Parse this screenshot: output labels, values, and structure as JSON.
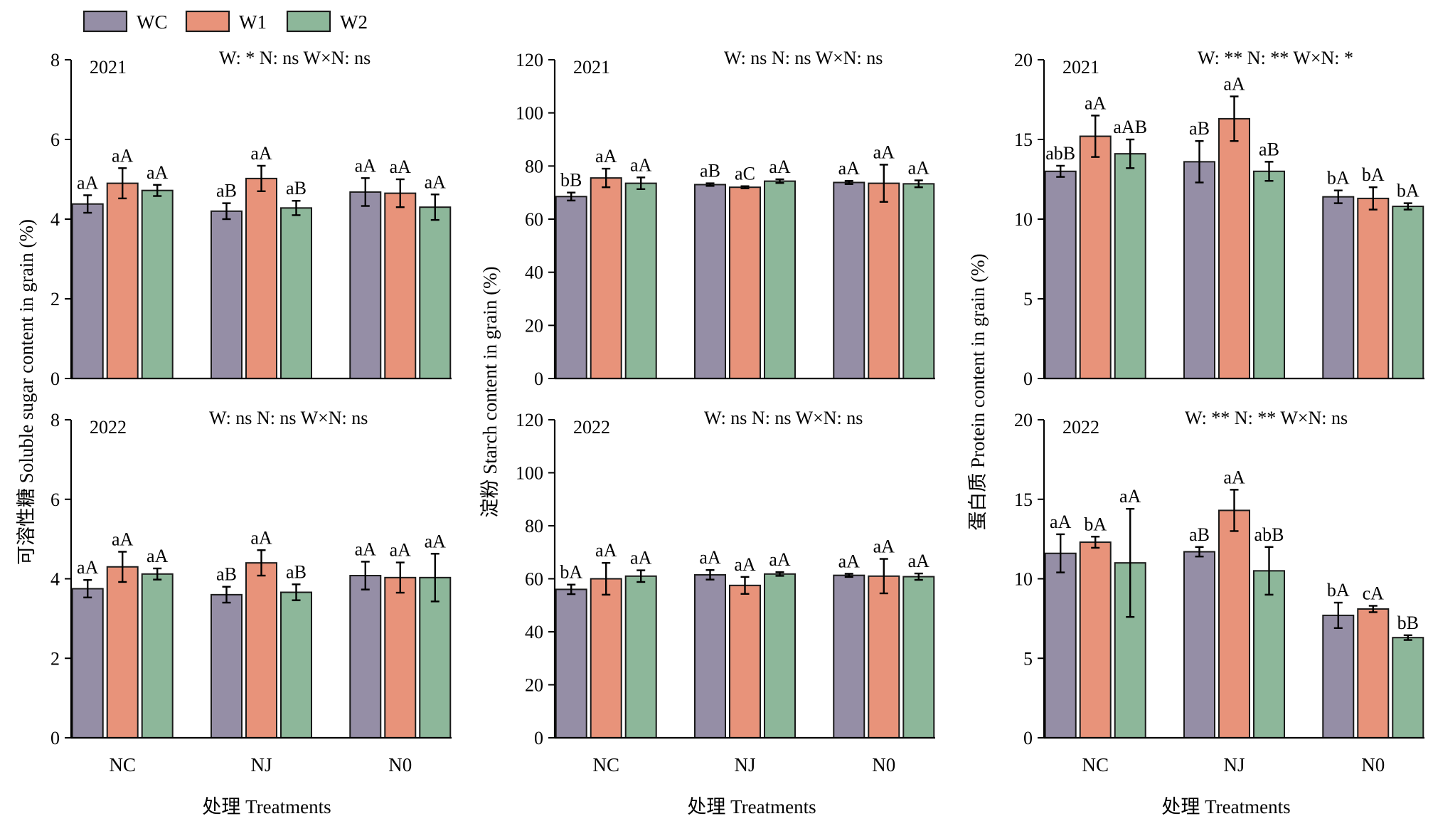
{
  "legend": {
    "entries": [
      {
        "name": "WC",
        "color": "#958ea6"
      },
      {
        "name": "W1",
        "color": "#e8937a"
      },
      {
        "name": "W2",
        "color": "#8db79a"
      }
    ]
  },
  "xlabel": "处理 Treatments",
  "chart_data": [
    {
      "type": "bar",
      "year": "2021",
      "stats": "W: *   N: ns   W×N: ns",
      "ylabel": "可溶性糖 Soluble sugar content in grain (%)",
      "ylim": [
        0,
        8
      ],
      "yticks": [
        0,
        2,
        4,
        6,
        8
      ],
      "categories": [
        "NC",
        "NJ",
        "N0"
      ],
      "series": [
        {
          "name": "WC",
          "values": [
            4.38,
            4.2,
            4.68
          ],
          "errors": [
            0.22,
            0.2,
            0.35
          ],
          "labels": [
            "aA",
            "aB",
            "aA"
          ]
        },
        {
          "name": "W1",
          "values": [
            4.9,
            5.02,
            4.65
          ],
          "errors": [
            0.38,
            0.32,
            0.35
          ],
          "labels": [
            "aA",
            "aA",
            "aA"
          ]
        },
        {
          "name": "W2",
          "values": [
            4.72,
            4.28,
            4.3
          ],
          "errors": [
            0.14,
            0.18,
            0.32
          ],
          "labels": [
            "aA",
            "aB",
            "aA"
          ]
        }
      ]
    },
    {
      "type": "bar",
      "year": "2021",
      "stats": "W: ns   N: ns   W×N: ns",
      "ylabel": "",
      "ylim": [
        0,
        120
      ],
      "yticks": [
        0,
        20,
        40,
        60,
        80,
        100,
        120
      ],
      "categories": [
        "NC",
        "NJ",
        "N0"
      ],
      "series": [
        {
          "name": "WC",
          "values": [
            68.5,
            73,
            73.8
          ],
          "errors": [
            1.5,
            0.5,
            0.6
          ],
          "labels": [
            "bB",
            "aB",
            "aA"
          ]
        },
        {
          "name": "W1",
          "values": [
            75.5,
            72,
            73.5
          ],
          "errors": [
            3.5,
            0.4,
            7
          ],
          "labels": [
            "aA",
            "aC",
            "aA"
          ]
        },
        {
          "name": "W2",
          "values": [
            73.5,
            74.3,
            73.3
          ],
          "errors": [
            2.2,
            0.7,
            1.3
          ],
          "labels": [
            "aA",
            "aA",
            "aA"
          ]
        }
      ]
    },
    {
      "type": "bar",
      "year": "2021",
      "stats": "W: **   N: **   W×N:  *",
      "ylabel": "",
      "ylim": [
        0,
        20
      ],
      "yticks": [
        0,
        5,
        10,
        15,
        20
      ],
      "categories": [
        "NC",
        "NJ",
        "N0"
      ],
      "series": [
        {
          "name": "WC",
          "values": [
            13,
            13.6,
            11.4
          ],
          "errors": [
            0.35,
            1.3,
            0.4
          ],
          "labels": [
            "abB",
            "aB",
            "bA"
          ]
        },
        {
          "name": "W1",
          "values": [
            15.2,
            16.3,
            11.3
          ],
          "errors": [
            1.3,
            1.4,
            0.7
          ],
          "labels": [
            "aA",
            "aA",
            "bA"
          ]
        },
        {
          "name": "W2",
          "values": [
            14.1,
            13,
            10.8
          ],
          "errors": [
            0.9,
            0.6,
            0.2
          ],
          "labels": [
            "aAB",
            "aB",
            "bA"
          ]
        }
      ]
    },
    {
      "type": "bar",
      "year": "2022",
      "stats": "W: ns   N: ns   W×N:  ns",
      "ylabel": "",
      "ylim": [
        0,
        8
      ],
      "yticks": [
        0,
        2,
        4,
        6,
        8
      ],
      "categories": [
        "NC",
        "NJ",
        "N0"
      ],
      "series": [
        {
          "name": "WC",
          "values": [
            3.75,
            3.6,
            4.08
          ],
          "errors": [
            0.22,
            0.2,
            0.35
          ],
          "labels": [
            "aA",
            "aB",
            "aA"
          ]
        },
        {
          "name": "W1",
          "values": [
            4.3,
            4.4,
            4.03
          ],
          "errors": [
            0.38,
            0.32,
            0.38
          ],
          "labels": [
            "aA",
            "aA",
            "aA"
          ]
        },
        {
          "name": "W2",
          "values": [
            4.12,
            3.66,
            4.03
          ],
          "errors": [
            0.14,
            0.2,
            0.6
          ],
          "labels": [
            "aA",
            "aB",
            "aA"
          ]
        }
      ]
    },
    {
      "type": "bar",
      "year": "2022",
      "stats": "W: ns   N: ns   W×N:  ns",
      "ylabel": "淀粉 Starch content in grain (%)",
      "ylim": [
        0,
        120
      ],
      "yticks": [
        0,
        20,
        40,
        60,
        80,
        100,
        120
      ],
      "categories": [
        "NC",
        "NJ",
        "N0"
      ],
      "series": [
        {
          "name": "WC",
          "values": [
            56,
            61.5,
            61.3
          ],
          "errors": [
            1.8,
            1.8,
            0.6
          ],
          "labels": [
            "bA",
            "aA",
            "aA"
          ]
        },
        {
          "name": "W1",
          "values": [
            60,
            57.5,
            61
          ],
          "errors": [
            6,
            3.2,
            6.5
          ],
          "labels": [
            "aA",
            "aA",
            "aA"
          ]
        },
        {
          "name": "W2",
          "values": [
            61,
            61.8,
            60.8
          ],
          "errors": [
            2.2,
            0.7,
            1.2
          ],
          "labels": [
            "aA",
            "aA",
            "aA"
          ]
        }
      ]
    },
    {
      "type": "bar",
      "year": "2022",
      "stats": "W: **   N: **   W×N: ns",
      "ylabel": "蛋白质 Protein content in grain (%)",
      "ylim": [
        0,
        20
      ],
      "yticks": [
        0,
        5,
        10,
        15,
        20
      ],
      "categories": [
        "NC",
        "NJ",
        "N0"
      ],
      "series": [
        {
          "name": "WC",
          "values": [
            11.6,
            11.7,
            7.7
          ],
          "errors": [
            1.2,
            0.3,
            0.8
          ],
          "labels": [
            "aA",
            "aB",
            "bA"
          ]
        },
        {
          "name": "W1",
          "values": [
            12.3,
            14.3,
            8.1
          ],
          "errors": [
            0.35,
            1.3,
            0.2
          ],
          "labels": [
            "bA",
            "aA",
            "cA"
          ]
        },
        {
          "name": "W2",
          "values": [
            11,
            10.5,
            6.3
          ],
          "errors": [
            3.4,
            1.5,
            0.15
          ],
          "labels": [
            "aA",
            "abB",
            "bB"
          ]
        }
      ]
    }
  ]
}
